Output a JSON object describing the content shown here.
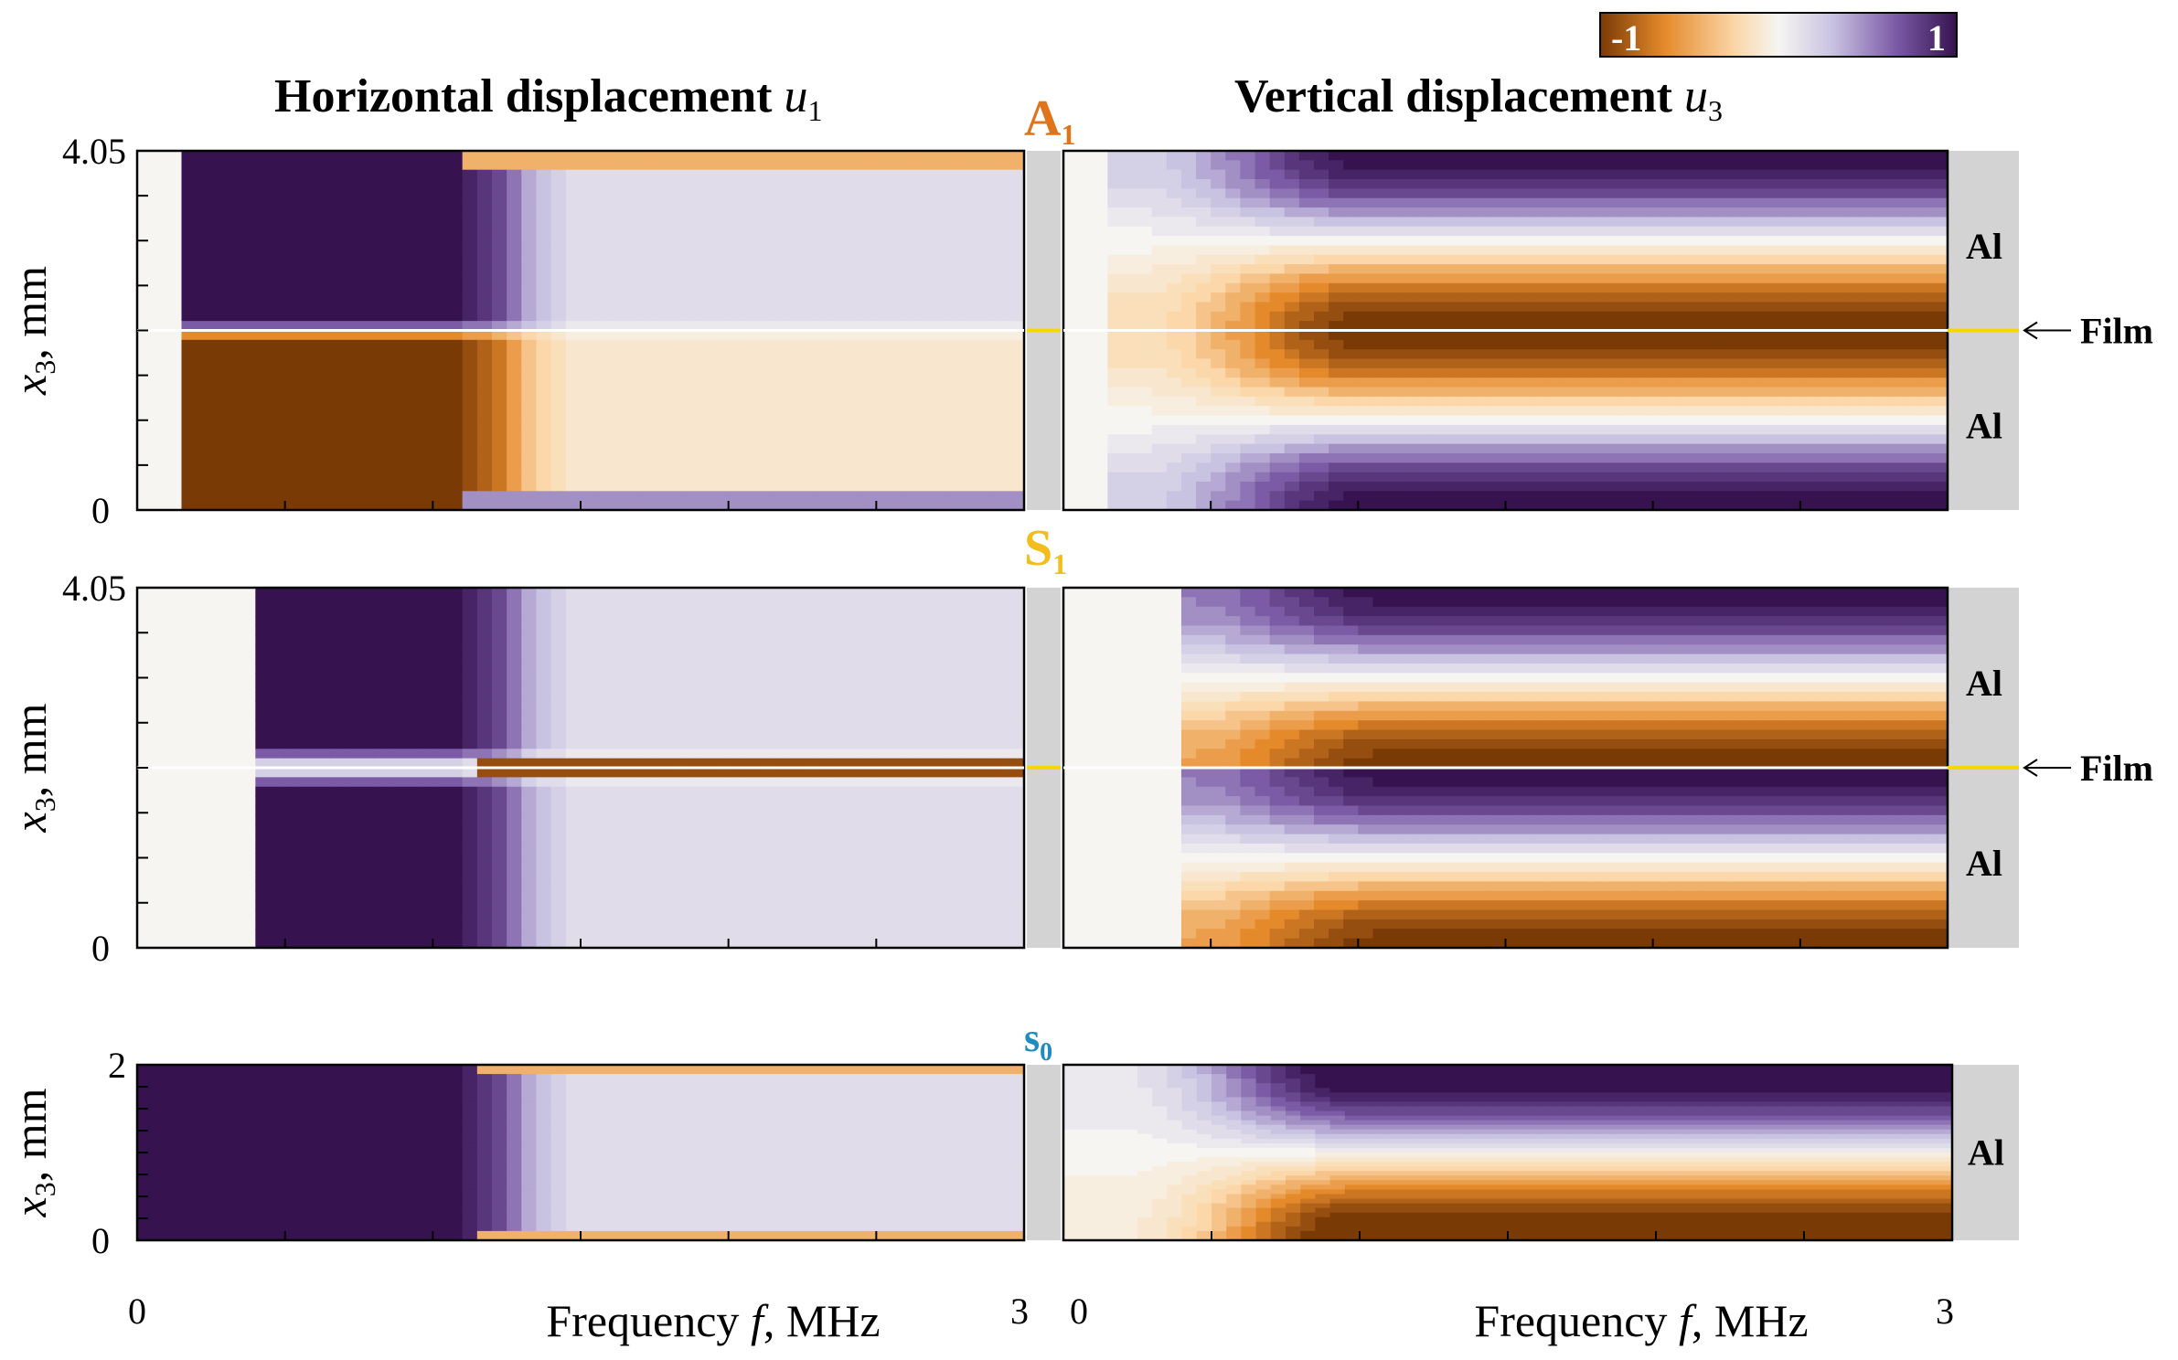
{
  "chart_data": {
    "type": "heatmap",
    "colorbar": {
      "min_label": "-1",
      "max_label": "1",
      "min": -1,
      "max": 1,
      "colormap": [
        "#7a3a06",
        "#e58a2b",
        "#fbd7a9",
        "#f6f5f2",
        "#c9c3e2",
        "#7b5aa6",
        "#36124f"
      ]
    },
    "columns": [
      {
        "title_text": "Horizontal displacement ",
        "title_var": "u",
        "title_sub": "1"
      },
      {
        "title_text": "Vertical displacement ",
        "title_var": "u",
        "title_sub": "3"
      }
    ],
    "xaxis": {
      "label_text": "Frequency ",
      "label_var": "f",
      "label_unit": ", MHz",
      "range": [
        0,
        3
      ],
      "tick_labels": [
        "0",
        "3"
      ]
    },
    "rows": [
      {
        "mode": "A",
        "mode_sub": "1",
        "mode_color": "#e0741a",
        "ylabel_var": "x",
        "ylabel_sub": "3",
        "ylabel_unit": ", mm",
        "yrange": [
          0,
          4.05
        ],
        "ytick_labels": [
          "0",
          "4.05"
        ],
        "layer_labels": [
          "Al",
          "Al"
        ],
        "film_label": "Film",
        "film_depth": 2.025
      },
      {
        "mode": "S",
        "mode_sub": "1",
        "mode_color": "#f2bd1d",
        "ylabel_var": "x",
        "ylabel_sub": "3",
        "ylabel_unit": ", mm",
        "yrange": [
          0,
          4.05
        ],
        "ytick_labels": [
          "0",
          "4.05"
        ],
        "layer_labels": [
          "Al",
          "Al"
        ],
        "film_label": "Film",
        "film_depth": 2.025
      },
      {
        "mode": "s",
        "mode_sub": "0",
        "mode_color": "#1f8cbf",
        "ylabel_var": "x",
        "ylabel_sub": "3",
        "ylabel_unit": ", mm",
        "yrange": [
          0,
          2
        ],
        "ytick_labels": [
          "0",
          "2"
        ],
        "layer_labels": [
          "Al"
        ]
      }
    ]
  }
}
